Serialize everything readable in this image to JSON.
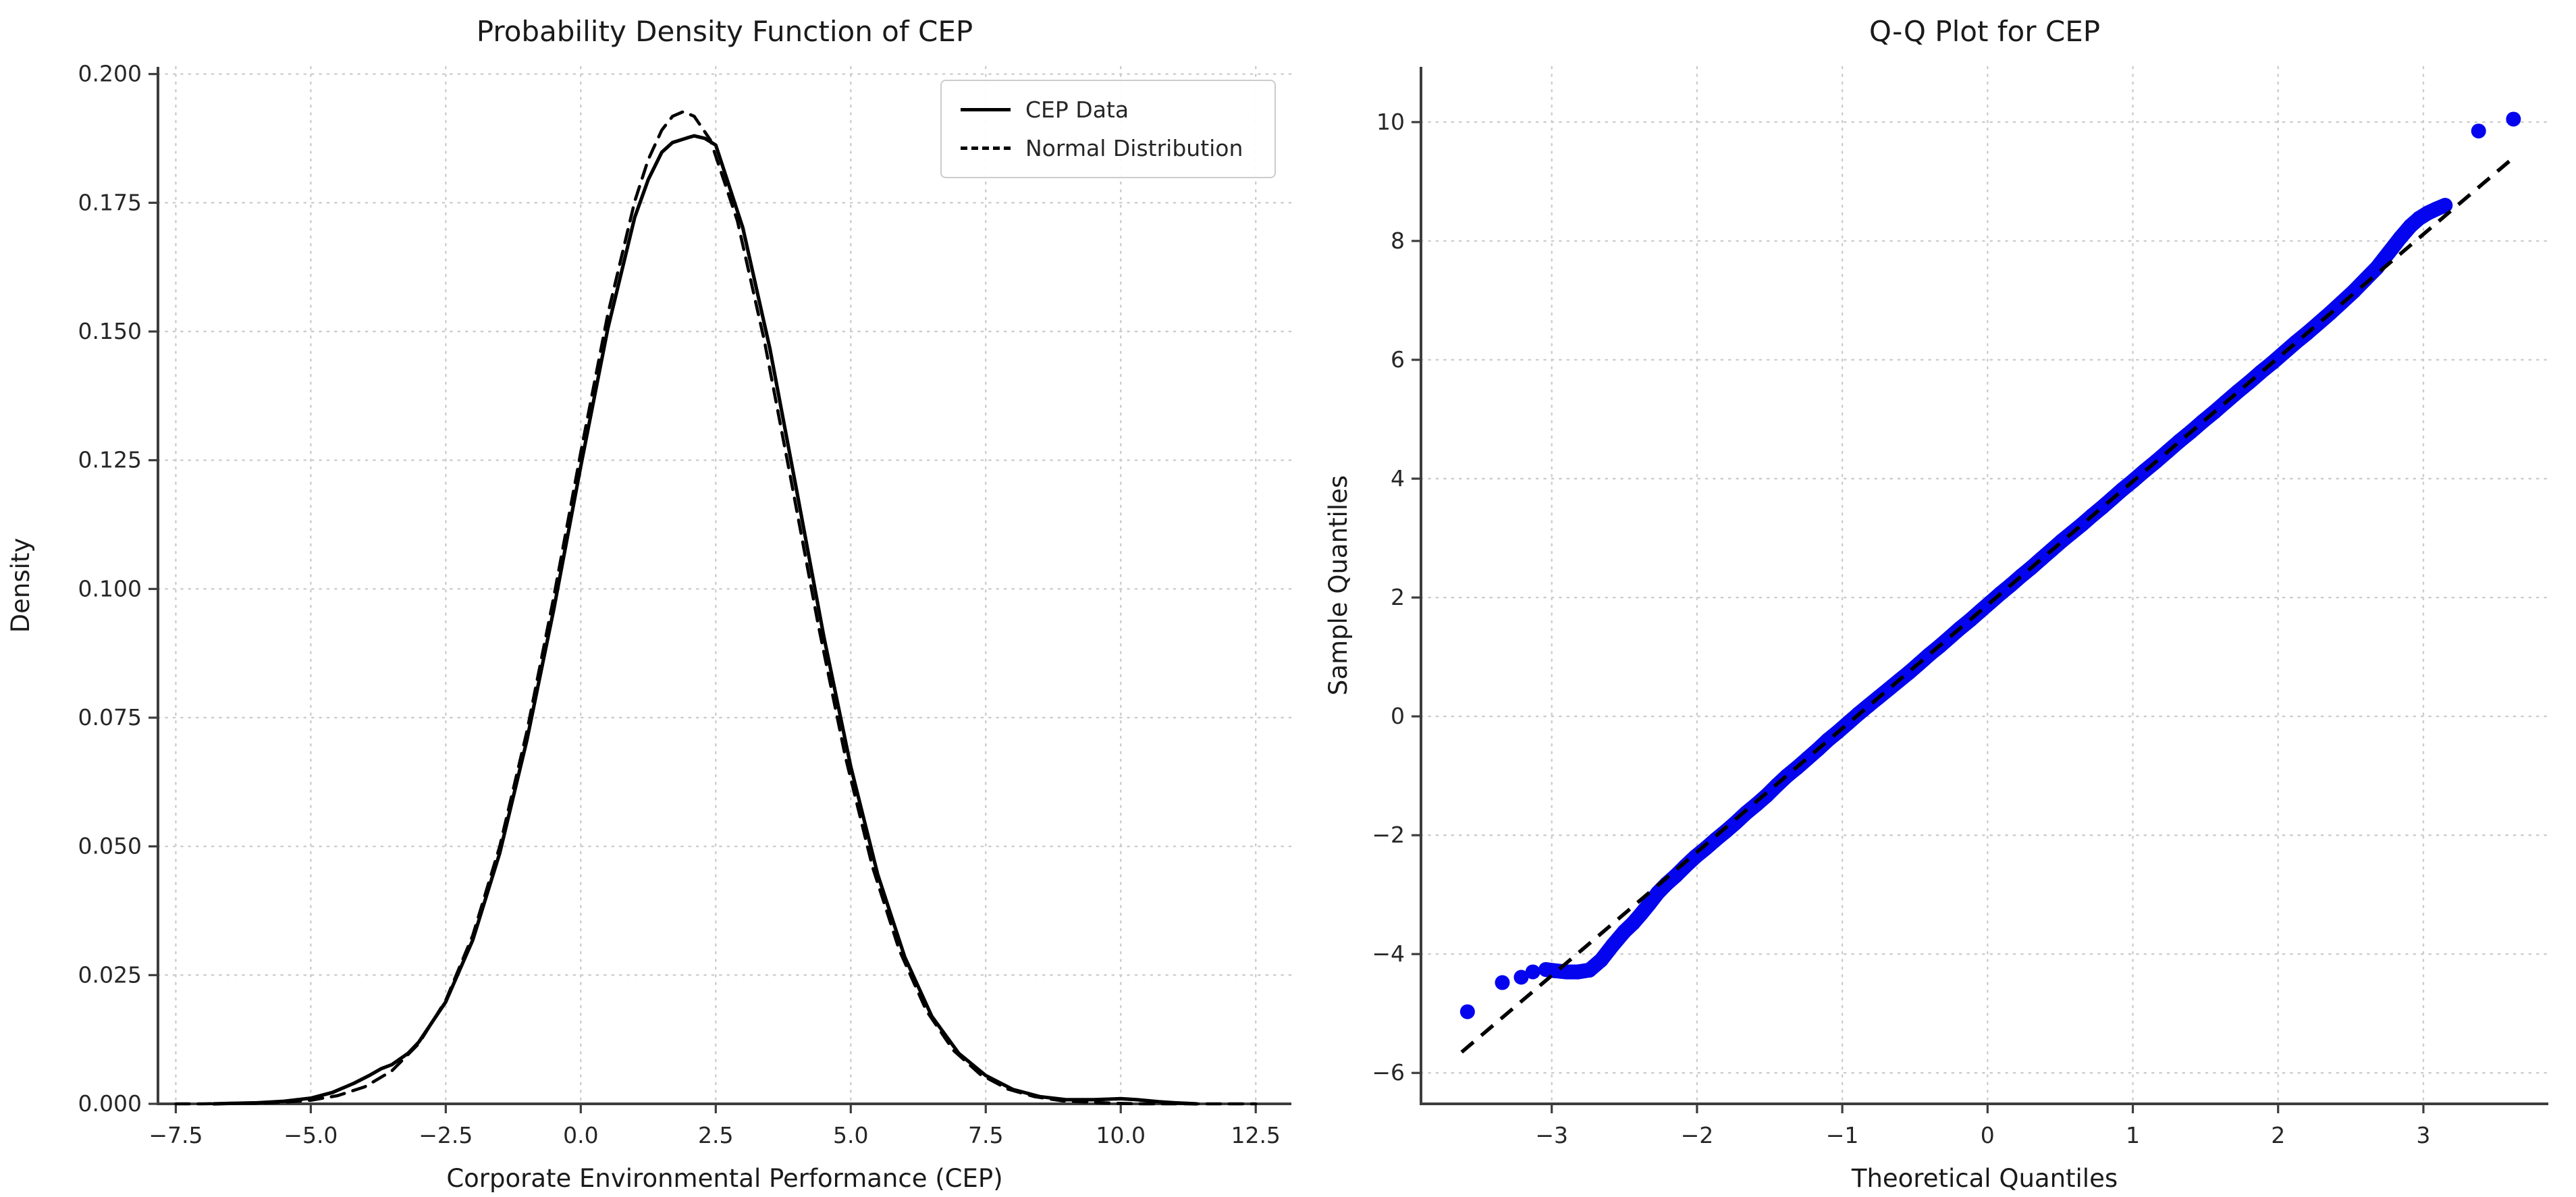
{
  "figure": {
    "background": "#ffffff",
    "colors": {
      "curve": "#000000",
      "qq_point": "#0404ee",
      "grid": "#cccccc",
      "spine": "#3d3d3d",
      "text": "#262626",
      "title_text": "#1a1a1a",
      "legend_border": "#cccccc"
    }
  },
  "chart_data": [
    {
      "id": "pdf",
      "type": "line",
      "title": "Probability Density Function of CEP",
      "xlabel": "Corporate Environmental Performance (CEP)",
      "ylabel": "Density",
      "xlim": [
        -7.83,
        13.16
      ],
      "ylim": [
        0,
        0.2014
      ],
      "grid": true,
      "xticks": {
        "values": [
          -7.5,
          -5.0,
          -2.5,
          0.0,
          2.5,
          5.0,
          7.5,
          10.0,
          12.5
        ],
        "labels": [
          "−7.5",
          "−5.0",
          "−2.5",
          "0.0",
          "2.5",
          "5.0",
          "7.5",
          "10.0",
          "12.5"
        ]
      },
      "yticks": {
        "values": [
          0.0,
          0.025,
          0.05,
          0.075,
          0.1,
          0.125,
          0.15,
          0.175,
          0.2
        ],
        "labels": [
          "0.000",
          "0.025",
          "0.050",
          "0.075",
          "0.100",
          "0.125",
          "0.150",
          "0.175",
          "0.200"
        ]
      },
      "legend": {
        "position": "upper right",
        "entries": [
          {
            "label": "CEP Data",
            "style": "solid"
          },
          {
            "label": "Normal Distribution",
            "style": "dashed"
          }
        ]
      },
      "series": [
        {
          "name": "Normal Distribution",
          "style": "dashed",
          "color": "#000000",
          "points": [
            [
              -7.5,
              0.0
            ],
            [
              -7.0,
              0.0
            ],
            [
              -6.5,
              0.0001
            ],
            [
              -6.0,
              0.0001
            ],
            [
              -5.5,
              0.0003
            ],
            [
              -5.0,
              0.0007
            ],
            [
              -4.5,
              0.0016
            ],
            [
              -4.0,
              0.0033
            ],
            [
              -3.5,
              0.0064
            ],
            [
              -3.0,
              0.0117
            ],
            [
              -2.5,
              0.0201
            ],
            [
              -2.0,
              0.0327
            ],
            [
              -1.5,
              0.05
            ],
            [
              -1.0,
              0.0722
            ],
            [
              -0.5,
              0.0984
            ],
            [
              0.0,
              0.1265
            ],
            [
              0.5,
              0.1533
            ],
            [
              1.0,
              0.1753
            ],
            [
              1.25,
              0.1834
            ],
            [
              1.5,
              0.1891
            ],
            [
              1.7,
              0.1918
            ],
            [
              1.9,
              0.1927
            ],
            [
              2.1,
              0.1918
            ],
            [
              2.4,
              0.1872
            ],
            [
              2.9,
              0.1715
            ],
            [
              3.4,
              0.1482
            ],
            [
              3.9,
              0.1208
            ],
            [
              4.4,
              0.0929
            ],
            [
              4.9,
              0.0674
            ],
            [
              5.4,
              0.0461
            ],
            [
              5.9,
              0.0298
            ],
            [
              6.4,
              0.0181
            ],
            [
              6.9,
              0.0104
            ],
            [
              7.4,
              0.0057
            ],
            [
              7.9,
              0.0029
            ],
            [
              8.4,
              0.0014
            ],
            [
              8.9,
              0.0006
            ],
            [
              9.4,
              0.0003
            ],
            [
              9.9,
              0.0001
            ],
            [
              10.4,
              0.0
            ],
            [
              11.0,
              0.0
            ],
            [
              11.8,
              0.0
            ],
            [
              12.5,
              0.0
            ]
          ]
        },
        {
          "name": "CEP Data",
          "style": "solid",
          "color": "#000000",
          "points": [
            [
              -6.8,
              0.0
            ],
            [
              -6.4,
              0.0001
            ],
            [
              -6.0,
              0.0002
            ],
            [
              -5.5,
              0.0005
            ],
            [
              -5.0,
              0.0011
            ],
            [
              -4.6,
              0.0022
            ],
            [
              -4.2,
              0.004
            ],
            [
              -3.9,
              0.0056
            ],
            [
              -3.7,
              0.0068
            ],
            [
              -3.5,
              0.0076
            ],
            [
              -3.2,
              0.0098
            ],
            [
              -3.0,
              0.012
            ],
            [
              -2.5,
              0.0198
            ],
            [
              -2.0,
              0.0318
            ],
            [
              -1.5,
              0.0487
            ],
            [
              -1.0,
              0.0705
            ],
            [
              -0.5,
              0.096
            ],
            [
              0.0,
              0.1238
            ],
            [
              0.5,
              0.1505
            ],
            [
              1.0,
              0.1722
            ],
            [
              1.25,
              0.1795
            ],
            [
              1.5,
              0.1848
            ],
            [
              1.7,
              0.1867
            ],
            [
              2.0,
              0.1877
            ],
            [
              2.1,
              0.188
            ],
            [
              2.3,
              0.1875
            ],
            [
              2.5,
              0.1862
            ],
            [
              3.0,
              0.1702
            ],
            [
              3.5,
              0.1468
            ],
            [
              4.0,
              0.119
            ],
            [
              4.5,
              0.0908
            ],
            [
              5.0,
              0.0655
            ],
            [
              5.5,
              0.0445
            ],
            [
              6.0,
              0.0285
            ],
            [
              6.5,
              0.017
            ],
            [
              7.0,
              0.0098
            ],
            [
              7.5,
              0.0055
            ],
            [
              8.0,
              0.0028
            ],
            [
              8.5,
              0.0014
            ],
            [
              9.0,
              0.0008
            ],
            [
              9.5,
              0.0008
            ],
            [
              10.0,
              0.001
            ],
            [
              10.3,
              0.0008
            ],
            [
              10.7,
              0.0004
            ],
            [
              11.0,
              0.0002
            ],
            [
              11.4,
              0.0
            ]
          ]
        }
      ]
    },
    {
      "id": "qq",
      "type": "scatter",
      "title": "Q-Q Plot for CEP",
      "xlabel": "Theoretical Quantiles",
      "ylabel": "Sample Quantiles",
      "xlim": [
        -3.9,
        3.86
      ],
      "ylim": [
        -6.52,
        10.93
      ],
      "grid": true,
      "xticks": {
        "values": [
          -3,
          -2,
          -1,
          0,
          1,
          2,
          3
        ],
        "labels": [
          "−3",
          "−2",
          "−1",
          "0",
          "1",
          "2",
          "3"
        ]
      },
      "yticks": {
        "values": [
          -6,
          -4,
          -2,
          0,
          2,
          4,
          6,
          8,
          10
        ],
        "labels": [
          "−6",
          "−4",
          "−2",
          "0",
          "2",
          "4",
          "6",
          "8",
          "10"
        ]
      },
      "point_color": "#0404ee",
      "point_radius": 11,
      "points_low": [
        [
          -3.58,
          -4.97
        ],
        [
          -3.34,
          -4.48
        ],
        [
          -3.21,
          -4.39
        ],
        [
          -3.13,
          -4.3
        ]
      ],
      "points_main": [
        [
          -3.04,
          -4.26
        ],
        [
          -2.98,
          -4.28
        ],
        [
          -2.9,
          -4.3
        ],
        [
          -2.82,
          -4.3
        ],
        [
          -2.74,
          -4.27
        ],
        [
          -2.66,
          -4.1
        ],
        [
          -2.58,
          -3.85
        ],
        [
          -2.5,
          -3.62
        ],
        [
          -2.44,
          -3.48
        ],
        [
          -2.38,
          -3.31
        ],
        [
          -2.33,
          -3.16
        ],
        [
          -2.27,
          -2.97
        ],
        [
          -2.21,
          -2.82
        ],
        [
          -2.15,
          -2.69
        ],
        [
          -2.08,
          -2.52
        ],
        [
          -2.01,
          -2.36
        ],
        [
          -1.94,
          -2.22
        ],
        [
          -1.87,
          -2.07
        ],
        [
          -1.8,
          -1.93
        ],
        [
          -1.73,
          -1.78
        ],
        [
          -1.66,
          -1.62
        ],
        [
          -1.59,
          -1.48
        ],
        [
          -1.52,
          -1.33
        ],
        [
          -1.45,
          -1.16
        ],
        [
          -1.38,
          -1.0
        ],
        [
          -1.31,
          -0.86
        ],
        [
          -1.24,
          -0.71
        ],
        [
          -1.17,
          -0.56
        ],
        [
          -1.1,
          -0.4
        ],
        [
          -1.03,
          -0.26
        ],
        [
          -0.96,
          -0.11
        ],
        [
          -0.89,
          0.04
        ],
        [
          -0.82,
          0.18
        ],
        [
          -0.75,
          0.32
        ],
        [
          -0.68,
          0.46
        ],
        [
          -0.61,
          0.6
        ],
        [
          -0.54,
          0.74
        ],
        [
          -0.47,
          0.89
        ],
        [
          -0.4,
          1.04
        ],
        [
          -0.33,
          1.18
        ],
        [
          -0.26,
          1.33
        ],
        [
          -0.19,
          1.48
        ],
        [
          -0.12,
          1.62
        ],
        [
          -0.05,
          1.77
        ],
        [
          0.02,
          1.92
        ],
        [
          0.09,
          2.07
        ],
        [
          0.16,
          2.21
        ],
        [
          0.23,
          2.36
        ],
        [
          0.3,
          2.5
        ],
        [
          0.37,
          2.65
        ],
        [
          0.44,
          2.8
        ],
        [
          0.51,
          2.95
        ],
        [
          0.58,
          3.09
        ],
        [
          0.65,
          3.23
        ],
        [
          0.72,
          3.38
        ],
        [
          0.79,
          3.52
        ],
        [
          0.86,
          3.67
        ],
        [
          0.93,
          3.82
        ],
        [
          1.0,
          3.96
        ],
        [
          1.08,
          4.13
        ],
        [
          1.16,
          4.29
        ],
        [
          1.24,
          4.46
        ],
        [
          1.32,
          4.63
        ],
        [
          1.4,
          4.79
        ],
        [
          1.48,
          4.96
        ],
        [
          1.56,
          5.12
        ],
        [
          1.64,
          5.29
        ],
        [
          1.72,
          5.46
        ],
        [
          1.8,
          5.62
        ],
        [
          1.88,
          5.79
        ],
        [
          1.96,
          5.95
        ],
        [
          2.04,
          6.12
        ],
        [
          2.12,
          6.29
        ],
        [
          2.2,
          6.45
        ],
        [
          2.28,
          6.62
        ],
        [
          2.36,
          6.79
        ],
        [
          2.44,
          6.97
        ],
        [
          2.52,
          7.15
        ],
        [
          2.6,
          7.35
        ],
        [
          2.68,
          7.55
        ],
        [
          2.76,
          7.8
        ],
        [
          2.84,
          8.05
        ],
        [
          2.91,
          8.25
        ],
        [
          2.97,
          8.38
        ],
        [
          3.03,
          8.47
        ],
        [
          3.09,
          8.54
        ],
        [
          3.15,
          8.6
        ]
      ],
      "points_high": [
        [
          3.38,
          9.85
        ],
        [
          3.62,
          10.05
        ]
      ],
      "reference_line": {
        "style": "dashed",
        "color": "#000000",
        "from": [
          -3.62,
          -5.65
        ],
        "to": [
          3.6,
          9.36
        ]
      }
    }
  ]
}
